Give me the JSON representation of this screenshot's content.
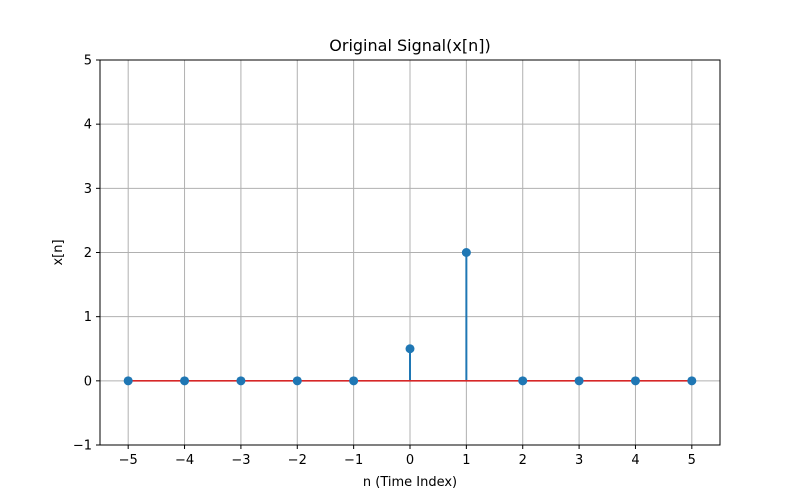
{
  "chart_data": {
    "type": "stem",
    "title": "Original Signal(x[n])",
    "xlabel": "n (Time Index)",
    "ylabel": "x[n]",
    "xlim": [
      -5.5,
      5.5
    ],
    "ylim": [
      -1,
      5
    ],
    "x_ticks": [
      -5,
      -4,
      -3,
      -2,
      -1,
      0,
      1,
      2,
      3,
      4,
      5
    ],
    "x_tick_labels": [
      "−5",
      "−4",
      "−3",
      "−2",
      "−1",
      "0",
      "1",
      "2",
      "3",
      "4",
      "5"
    ],
    "y_ticks": [
      -1,
      0,
      1,
      2,
      3,
      4,
      5
    ],
    "y_tick_labels": [
      "−1",
      "0",
      "1",
      "2",
      "3",
      "4",
      "5"
    ],
    "grid": true,
    "x": [
      -5,
      -4,
      -3,
      -2,
      -1,
      0,
      1,
      2,
      3,
      4,
      5
    ],
    "values": [
      0,
      0,
      0,
      0,
      0,
      0.5,
      2,
      0,
      0,
      0,
      0
    ],
    "colors": {
      "stem": "#1f77b4",
      "marker": "#1f77b4",
      "baseline": "#d62728",
      "grid": "#b0b0b0",
      "axes": "#000000"
    }
  }
}
